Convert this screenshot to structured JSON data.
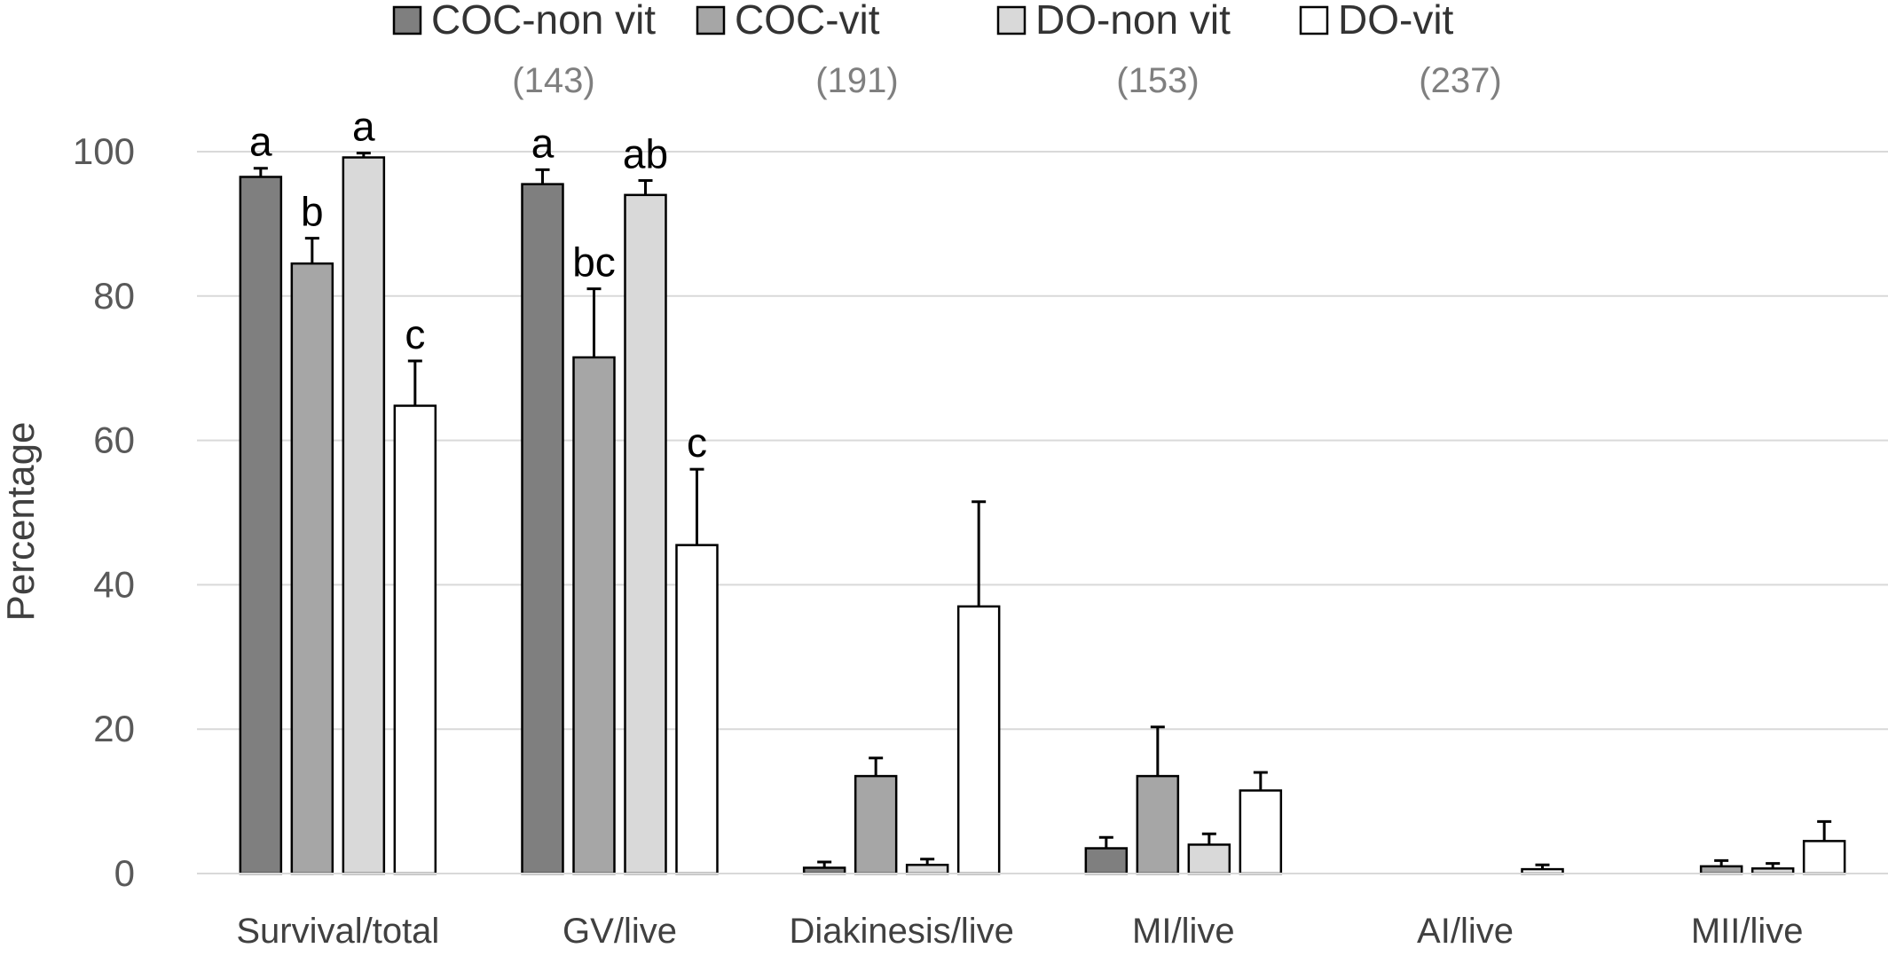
{
  "chart_data": {
    "type": "bar",
    "ylabel": "Percentage",
    "xlabel": "",
    "ylim": [
      0,
      100
    ],
    "yticks": [
      0,
      20,
      40,
      60,
      80,
      100
    ],
    "grid": true,
    "legend_position": "top",
    "categories": [
      "Survival/total",
      "GV/live",
      "Diakinesis/live",
      "MI/live",
      "AI/live",
      "MII/live"
    ],
    "series": [
      {
        "name": "COC-non vit",
        "n_label": "(143)",
        "color": "#7f7f7f",
        "values": [
          96.5,
          95.5,
          0.8,
          3.5,
          0,
          0
        ],
        "errors": [
          1.2,
          2.0,
          0.8,
          1.5,
          0,
          0
        ],
        "sig": [
          "a",
          "a",
          "",
          "",
          "",
          ""
        ]
      },
      {
        "name": "COC-vit",
        "n_label": "(191)",
        "color": "#a6a6a6",
        "values": [
          84.5,
          71.5,
          13.5,
          13.5,
          0,
          1.0
        ],
        "errors": [
          3.5,
          9.5,
          2.5,
          6.8,
          0,
          0.8
        ],
        "sig": [
          "b",
          "bc",
          "",
          "",
          "",
          ""
        ]
      },
      {
        "name": "DO-non vit",
        "n_label": "(153)",
        "color": "#d9d9d9",
        "values": [
          99.2,
          94.0,
          1.2,
          4.0,
          0,
          0.7
        ],
        "errors": [
          0.6,
          2.0,
          0.8,
          1.5,
          0,
          0.7
        ],
        "sig": [
          "a",
          "ab",
          "",
          "",
          "",
          ""
        ]
      },
      {
        "name": "DO-vit",
        "n_label": "(237)",
        "color": "#ffffff",
        "values": [
          64.8,
          45.5,
          37.0,
          11.5,
          0.6,
          4.5
        ],
        "errors": [
          6.2,
          10.5,
          14.5,
          2.5,
          0.6,
          2.7
        ],
        "sig": [
          "c",
          "c",
          "",
          "",
          "",
          ""
        ]
      }
    ]
  }
}
